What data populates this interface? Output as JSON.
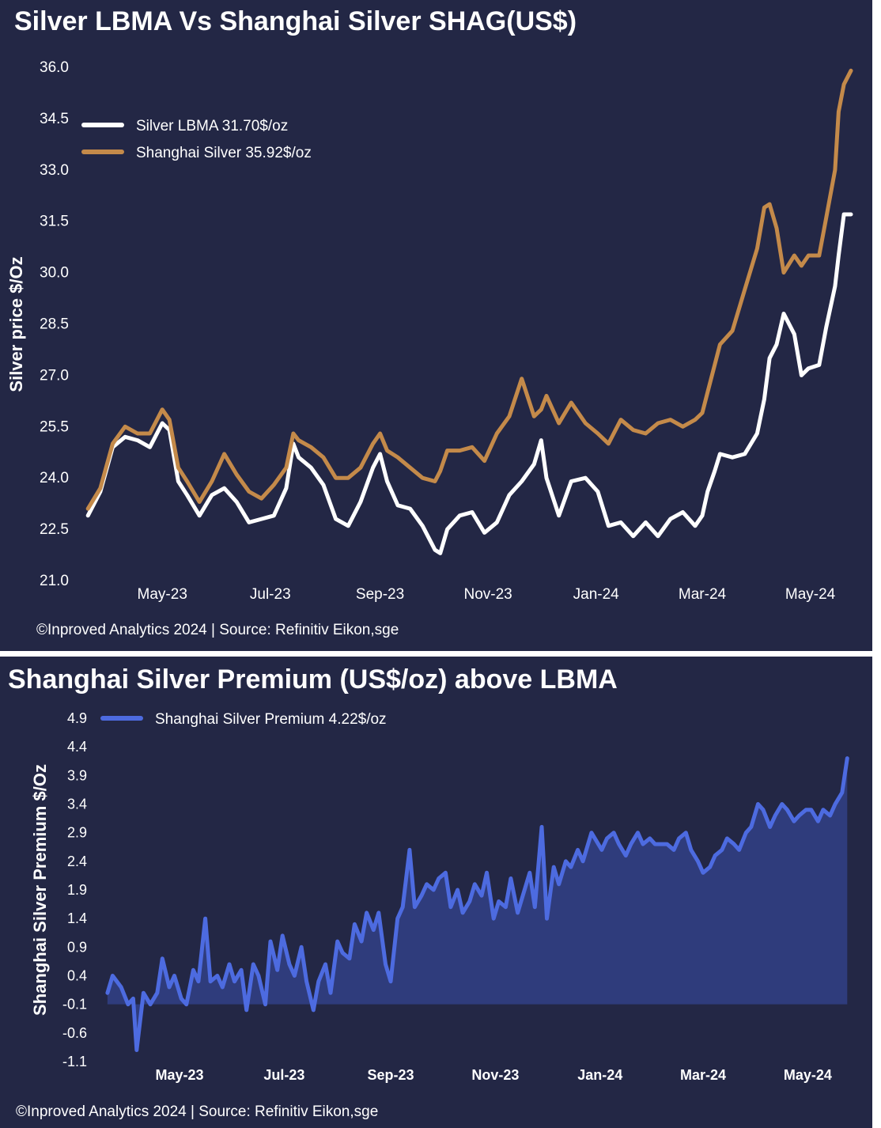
{
  "chart_data": [
    {
      "type": "line",
      "title": "Silver LBMA Vs Shanghai Silver SHAG(US$)",
      "ylabel": "Silver price $/Oz",
      "xlabel": "",
      "ylim": [
        21.0,
        36.0
      ],
      "yticks": [
        "36.0",
        "34.5",
        "33.0",
        "31.5",
        "30.0",
        "28.5",
        "27.0",
        "25.5",
        "24.0",
        "22.5",
        "21.0"
      ],
      "x_tick_labels": [
        "May-23",
        "Jul-23",
        "Sep-23",
        "Nov-23",
        "Jan-24",
        "Mar-24",
        "May-24"
      ],
      "x_tick_dates": [
        "2023-05-01",
        "2023-07-01",
        "2023-09-01",
        "2023-11-01",
        "2024-01-01",
        "2024-03-01",
        "2024-05-01"
      ],
      "xlim": [
        "2023-03-15",
        "2024-05-28"
      ],
      "grid": false,
      "legend_position": "top-left",
      "series": [
        {
          "name": "Silver LBMA 31.70$/oz",
          "color": "#ffffff",
          "x": [
            "2023-03-20",
            "2023-03-27",
            "2023-04-03",
            "2023-04-10",
            "2023-04-17",
            "2023-04-24",
            "2023-05-01",
            "2023-05-05",
            "2023-05-10",
            "2023-05-15",
            "2023-05-22",
            "2023-05-29",
            "2023-06-05",
            "2023-06-12",
            "2023-06-19",
            "2023-06-26",
            "2023-07-03",
            "2023-07-10",
            "2023-07-14",
            "2023-07-17",
            "2023-07-24",
            "2023-07-31",
            "2023-08-07",
            "2023-08-14",
            "2023-08-21",
            "2023-08-28",
            "2023-09-01",
            "2023-09-05",
            "2023-09-11",
            "2023-09-18",
            "2023-09-25",
            "2023-10-02",
            "2023-10-05",
            "2023-10-09",
            "2023-10-16",
            "2023-10-23",
            "2023-10-30",
            "2023-11-06",
            "2023-11-13",
            "2023-11-20",
            "2023-11-27",
            "2023-12-01",
            "2023-12-04",
            "2023-12-11",
            "2023-12-18",
            "2023-12-26",
            "2024-01-02",
            "2024-01-08",
            "2024-01-15",
            "2024-01-22",
            "2024-01-29",
            "2024-02-05",
            "2024-02-12",
            "2024-02-19",
            "2024-02-26",
            "2024-03-01",
            "2024-03-04",
            "2024-03-08",
            "2024-03-11",
            "2024-03-18",
            "2024-03-25",
            "2024-04-01",
            "2024-04-05",
            "2024-04-08",
            "2024-04-12",
            "2024-04-16",
            "2024-04-22",
            "2024-04-26",
            "2024-04-30",
            "2024-05-06",
            "2024-05-10",
            "2024-05-15",
            "2024-05-17",
            "2024-05-20",
            "2024-05-24"
          ],
          "values": [
            22.9,
            23.6,
            24.9,
            25.2,
            25.1,
            24.9,
            25.6,
            25.4,
            23.9,
            23.5,
            22.9,
            23.5,
            23.7,
            23.3,
            22.7,
            22.8,
            22.9,
            23.7,
            25.0,
            24.6,
            24.3,
            23.8,
            22.8,
            22.6,
            23.3,
            24.3,
            24.7,
            23.9,
            23.2,
            23.1,
            22.6,
            21.9,
            21.8,
            22.5,
            22.9,
            23.0,
            22.4,
            22.7,
            23.5,
            23.9,
            24.4,
            25.1,
            24.0,
            22.9,
            23.9,
            24.0,
            23.6,
            22.6,
            22.7,
            22.3,
            22.7,
            22.3,
            22.8,
            23.0,
            22.6,
            22.9,
            23.6,
            24.2,
            24.7,
            24.6,
            24.7,
            25.3,
            26.3,
            27.5,
            27.9,
            28.8,
            28.2,
            27.0,
            27.2,
            27.3,
            28.4,
            29.6,
            30.5,
            31.7,
            31.7
          ]
        },
        {
          "name": "Shanghai Silver 35.92$/oz",
          "color": "#c48a4a",
          "x": [
            "2023-03-20",
            "2023-03-27",
            "2023-04-03",
            "2023-04-10",
            "2023-04-17",
            "2023-04-24",
            "2023-05-01",
            "2023-05-05",
            "2023-05-10",
            "2023-05-15",
            "2023-05-22",
            "2023-05-29",
            "2023-06-05",
            "2023-06-12",
            "2023-06-19",
            "2023-06-26",
            "2023-07-03",
            "2023-07-10",
            "2023-07-14",
            "2023-07-17",
            "2023-07-24",
            "2023-07-31",
            "2023-08-07",
            "2023-08-14",
            "2023-08-21",
            "2023-08-28",
            "2023-09-01",
            "2023-09-05",
            "2023-09-11",
            "2023-09-18",
            "2023-09-25",
            "2023-10-02",
            "2023-10-05",
            "2023-10-09",
            "2023-10-16",
            "2023-10-23",
            "2023-10-30",
            "2023-11-06",
            "2023-11-13",
            "2023-11-20",
            "2023-11-27",
            "2023-12-01",
            "2023-12-04",
            "2023-12-11",
            "2023-12-18",
            "2023-12-26",
            "2024-01-02",
            "2024-01-08",
            "2024-01-15",
            "2024-01-22",
            "2024-01-29",
            "2024-02-05",
            "2024-02-12",
            "2024-02-19",
            "2024-02-26",
            "2024-03-01",
            "2024-03-04",
            "2024-03-08",
            "2024-03-11",
            "2024-03-18",
            "2024-03-25",
            "2024-04-01",
            "2024-04-05",
            "2024-04-08",
            "2024-04-12",
            "2024-04-16",
            "2024-04-22",
            "2024-04-26",
            "2024-04-30",
            "2024-05-06",
            "2024-05-10",
            "2024-05-15",
            "2024-05-17",
            "2024-05-20",
            "2024-05-24"
          ],
          "values": [
            23.1,
            23.7,
            25.0,
            25.5,
            25.3,
            25.3,
            26.0,
            25.7,
            24.3,
            23.9,
            23.3,
            23.9,
            24.7,
            24.1,
            23.6,
            23.4,
            23.8,
            24.3,
            25.3,
            25.1,
            24.9,
            24.6,
            24.0,
            24.0,
            24.3,
            25.0,
            25.3,
            24.8,
            24.6,
            24.3,
            24.0,
            23.9,
            24.2,
            24.8,
            24.8,
            24.9,
            24.5,
            25.3,
            25.8,
            26.9,
            25.8,
            26.0,
            26.4,
            25.6,
            26.2,
            25.6,
            25.3,
            25.0,
            25.7,
            25.4,
            25.3,
            25.6,
            25.7,
            25.5,
            25.7,
            25.9,
            26.5,
            27.3,
            27.9,
            28.3,
            29.5,
            30.7,
            31.9,
            32.0,
            31.3,
            30.0,
            30.5,
            30.2,
            30.5,
            30.5,
            31.6,
            33.0,
            34.7,
            35.5,
            35.9
          ]
        }
      ]
    },
    {
      "type": "area",
      "title": "Shanghai Silver Premium (US$/oz) above LBMA",
      "ylabel": "Shanghai Silver Premium $/Oz",
      "xlabel": "",
      "ylim": [
        -1.1,
        4.9
      ],
      "yticks": [
        "4.9",
        "4.4",
        "3.9",
        "3.4",
        "2.9",
        "2.4",
        "1.9",
        "1.4",
        "0.9",
        "0.4",
        "-0.1",
        "-0.6",
        "-1.1"
      ],
      "x_tick_labels": [
        "May-23",
        "Jul-23",
        "Sep-23",
        "Nov-23",
        "Jan-24",
        "Mar-24",
        "May-24"
      ],
      "x_tick_dates": [
        "2023-05-01",
        "2023-07-01",
        "2023-09-01",
        "2023-11-01",
        "2024-01-01",
        "2024-03-01",
        "2024-05-01"
      ],
      "xlim": [
        "2023-03-15",
        "2024-05-28"
      ],
      "baseline": -0.1,
      "grid": false,
      "legend_position": "top-left",
      "series": [
        {
          "name": "Shanghai Silver Premium 4.22$/oz",
          "color": "#4d6be0",
          "fill": "#2f3c7c",
          "x": [
            "2023-03-20",
            "2023-03-23",
            "2023-03-28",
            "2023-04-01",
            "2023-04-04",
            "2023-04-06",
            "2023-04-10",
            "2023-04-14",
            "2023-04-18",
            "2023-04-21",
            "2023-04-25",
            "2023-04-28",
            "2023-05-02",
            "2023-05-05",
            "2023-05-09",
            "2023-05-12",
            "2023-05-16",
            "2023-05-19",
            "2023-05-23",
            "2023-05-26",
            "2023-05-30",
            "2023-06-02",
            "2023-06-06",
            "2023-06-09",
            "2023-06-13",
            "2023-06-16",
            "2023-06-20",
            "2023-06-23",
            "2023-06-27",
            "2023-06-30",
            "2023-07-04",
            "2023-07-07",
            "2023-07-11",
            "2023-07-14",
            "2023-07-18",
            "2023-07-21",
            "2023-07-25",
            "2023-07-28",
            "2023-08-01",
            "2023-08-04",
            "2023-08-08",
            "2023-08-11",
            "2023-08-15",
            "2023-08-18",
            "2023-08-22",
            "2023-08-25",
            "2023-08-29",
            "2023-09-01",
            "2023-09-05",
            "2023-09-08",
            "2023-09-12",
            "2023-09-15",
            "2023-09-19",
            "2023-09-22",
            "2023-09-26",
            "2023-09-29",
            "2023-10-03",
            "2023-10-06",
            "2023-10-10",
            "2023-10-13",
            "2023-10-17",
            "2023-10-20",
            "2023-10-24",
            "2023-10-27",
            "2023-10-31",
            "2023-11-03",
            "2023-11-07",
            "2023-11-10",
            "2023-11-14",
            "2023-11-17",
            "2023-11-21",
            "2023-11-24",
            "2023-11-28",
            "2023-12-01",
            "2023-12-05",
            "2023-12-08",
            "2023-12-12",
            "2023-12-15",
            "2023-12-19",
            "2023-12-22",
            "2023-12-27",
            "2024-01-02",
            "2024-01-05",
            "2024-01-09",
            "2024-01-12",
            "2024-01-16",
            "2024-01-19",
            "2024-01-23",
            "2024-01-26",
            "2024-01-30",
            "2024-02-02",
            "2024-02-06",
            "2024-02-09",
            "2024-02-13",
            "2024-02-16",
            "2024-02-20",
            "2024-02-23",
            "2024-02-27",
            "2024-03-01",
            "2024-03-05",
            "2024-03-08",
            "2024-03-12",
            "2024-03-15",
            "2024-03-19",
            "2024-03-22",
            "2024-03-26",
            "2024-03-29",
            "2024-04-02",
            "2024-04-05",
            "2024-04-09",
            "2024-04-12",
            "2024-04-16",
            "2024-04-19",
            "2024-04-23",
            "2024-04-26",
            "2024-04-30",
            "2024-05-03",
            "2024-05-07",
            "2024-05-10",
            "2024-05-14",
            "2024-05-17",
            "2024-05-21",
            "2024-05-24"
          ],
          "values": [
            0.1,
            0.4,
            0.2,
            -0.1,
            0.0,
            -0.9,
            0.1,
            -0.1,
            0.1,
            0.7,
            0.2,
            0.4,
            0.0,
            -0.1,
            0.5,
            0.3,
            1.4,
            0.3,
            0.4,
            0.2,
            0.6,
            0.3,
            0.5,
            -0.2,
            0.6,
            0.4,
            -0.1,
            1.0,
            0.5,
            1.1,
            0.6,
            0.4,
            0.9,
            0.3,
            -0.2,
            0.3,
            0.6,
            0.1,
            1.0,
            0.8,
            0.7,
            1.3,
            1.0,
            1.5,
            1.2,
            1.5,
            0.6,
            0.3,
            1.4,
            1.6,
            2.6,
            1.6,
            1.8,
            2.0,
            1.9,
            2.1,
            2.2,
            1.6,
            1.9,
            1.5,
            1.7,
            2.0,
            1.8,
            2.2,
            1.4,
            1.7,
            1.6,
            2.1,
            1.5,
            1.8,
            2.2,
            1.6,
            3.0,
            1.4,
            2.3,
            2.0,
            2.4,
            2.3,
            2.6,
            2.4,
            2.9,
            2.6,
            2.8,
            2.9,
            2.7,
            2.5,
            2.7,
            2.9,
            2.7,
            2.8,
            2.7,
            2.7,
            2.7,
            2.6,
            2.8,
            2.9,
            2.6,
            2.4,
            2.2,
            2.3,
            2.5,
            2.6,
            2.8,
            2.7,
            2.6,
            2.9,
            3.0,
            3.4,
            3.3,
            3.0,
            3.2,
            3.4,
            3.3,
            3.1,
            3.2,
            3.3,
            3.3,
            3.1,
            3.3,
            3.2,
            3.4,
            3.6,
            4.2
          ]
        }
      ]
    }
  ],
  "footer": {
    "credit_top": "©Inproved Analytics 2024 | Source: Refinitiv Eikon,sge",
    "credit_bottom": "©Inproved Analytics 2024 | Source: Refinitiv Eikon,sge"
  }
}
